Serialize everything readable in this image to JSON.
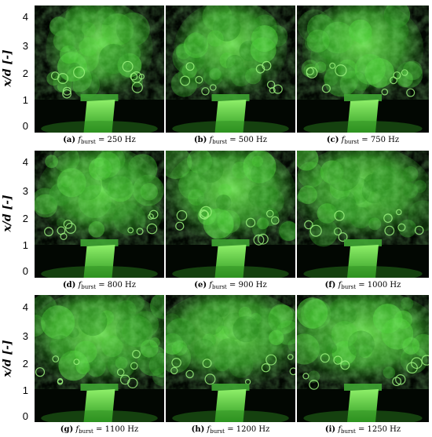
{
  "yaxis": {
    "label": "x/d [-]",
    "ticks": [
      "4",
      "3",
      "2",
      "1",
      "0"
    ]
  },
  "panels": [
    {
      "label": "(a)",
      "symbol": "f",
      "subscript": "burst",
      "value": "= 250 Hz"
    },
    {
      "label": "(b)",
      "symbol": "f",
      "subscript": "burst",
      "value": "= 500 Hz"
    },
    {
      "label": "(c)",
      "symbol": "f",
      "subscript": "burst",
      "value": "= 750 Hz"
    },
    {
      "label": "(d)",
      "symbol": "f",
      "subscript": "burst",
      "value": "= 800 Hz"
    },
    {
      "label": "(e)",
      "symbol": "f",
      "subscript": "burst",
      "value": "= 900 Hz"
    },
    {
      "label": "(f)",
      "symbol": "f",
      "subscript": "burst",
      "value": "= 1000 Hz"
    },
    {
      "label": "(g)",
      "symbol": "f",
      "subscript": "burst",
      "value": "= 1100 Hz"
    },
    {
      "label": "(h)",
      "symbol": "f",
      "subscript": "burst",
      "value": "= 1200 Hz"
    },
    {
      "label": "(i)",
      "symbol": "f",
      "subscript": "burst",
      "value": "= 1250 Hz"
    }
  ],
  "colors": {
    "plume": "#4fcf3a",
    "plume_bright": "#9af07a",
    "background": "#020702"
  }
}
